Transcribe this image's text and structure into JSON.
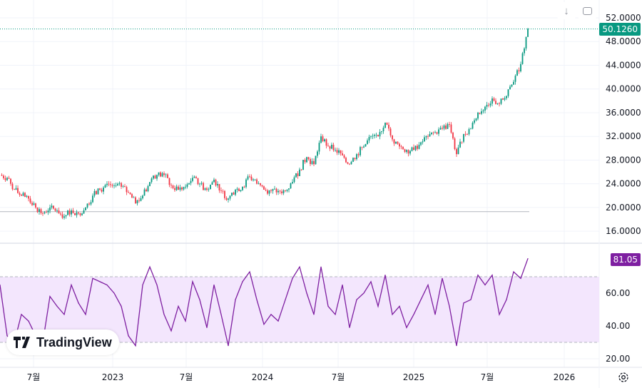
{
  "toolbar": {
    "download_icon": "arrow-down-icon",
    "fullscreen_icon": "fullscreen-icon"
  },
  "price_badge": {
    "label": "50.1260",
    "color": "#089981"
  },
  "rsi_badge": {
    "label": "81.05",
    "color": "#7e1fa1"
  },
  "logo": {
    "text": "TradingView"
  },
  "colors": {
    "up": "#089981",
    "down": "#f23645",
    "rsi": "#7e1fa1",
    "rsi_band": "#f3e6fd"
  },
  "chart_data": [
    {
      "type": "candlestick",
      "title": "Price",
      "x_start_year": 2022.25,
      "x_step_years": 0.0474,
      "closes": [
        25.5,
        25,
        23,
        22,
        21.5,
        20,
        19,
        20,
        19.5,
        18.5,
        19.5,
        19,
        20,
        22,
        23,
        24,
        23.7,
        23.5,
        22.5,
        20.7,
        22,
        24.3,
        25.5,
        25.5,
        23.7,
        23,
        23.5,
        25,
        24,
        23,
        24.7,
        22.8,
        21.5,
        23,
        23.5,
        25.2,
        24,
        23,
        22.8,
        22.8,
        22.8,
        24.3,
        26.4,
        28.5,
        27.3,
        32,
        30.3,
        29.7,
        28.8,
        27.3,
        29,
        30.3,
        32,
        32,
        34.3,
        31.5,
        30.3,
        29.7,
        29.7,
        31,
        32,
        32.7,
        33.3,
        34,
        29,
        32.4,
        33.3,
        36,
        37,
        38.4,
        37.5,
        38.8,
        41.2,
        44.2,
        50.126
      ],
      "last_price": 50.126,
      "reference_line": 19.3,
      "ylim": [
        14,
        54
      ],
      "yticks": [
        "52.0000",
        "48.0000",
        "44.0000",
        "40.0000",
        "36.0000",
        "32.0000",
        "28.0000",
        "24.0000",
        "20.0000",
        "16.0000"
      ]
    },
    {
      "type": "line",
      "title": "RSI",
      "values": [
        65,
        34,
        30,
        47,
        43,
        34,
        30,
        58,
        52,
        47,
        65,
        54,
        47,
        69,
        67,
        65,
        60,
        52,
        34,
        28,
        65,
        76,
        65,
        47,
        37,
        52,
        43,
        67,
        56,
        39,
        65,
        47,
        28,
        56,
        67,
        73,
        56,
        41,
        47,
        43,
        56,
        69,
        76,
        60,
        47,
        76,
        52,
        47,
        65,
        39,
        56,
        60,
        67,
        52,
        71,
        47,
        52,
        39,
        47,
        56,
        65,
        47,
        69,
        52,
        28,
        54,
        56,
        71,
        65,
        71,
        47,
        56,
        73,
        69,
        81.05
      ],
      "band": [
        30,
        70
      ],
      "ylim": [
        15,
        83
      ],
      "yticks": [
        "60.00",
        "40.00",
        "20.00"
      ]
    }
  ],
  "time_axis": [
    "7월",
    "2023",
    "7월",
    "2024",
    "7월",
    "2025",
    "7월",
    "2026"
  ]
}
